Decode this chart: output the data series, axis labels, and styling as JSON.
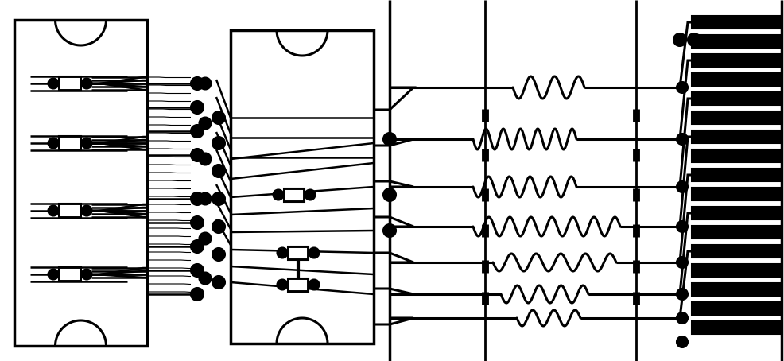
{
  "bg_color": "#ffffff",
  "line_color": "#000000",
  "lw": 2.2,
  "lw_thin": 1.8,
  "lw_thick": 3.0,
  "fig_width": 9.86,
  "fig_height": 4.54,
  "dpi": 100
}
